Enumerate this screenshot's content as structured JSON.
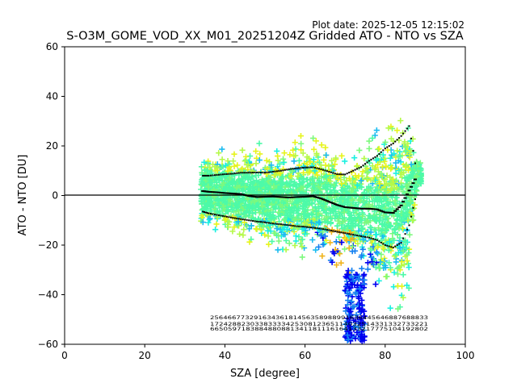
{
  "plot_date": "Plot date: 2025-12-05 12:15:02",
  "colors": {
    "zero_line": "#000000",
    "stat_marker": "#000000",
    "scatter_palette": [
      "#4dfaa8",
      "#7df97d",
      "#b5f94a",
      "#e6f41c",
      "#1cf0e0",
      "#1cbcf0",
      "#1480f0",
      "#f0b41c",
      "#0000f0"
    ]
  },
  "chart_data": {
    "type": "scatter",
    "title": "S-O3M_GOME_VOD_XX_M01_20251204Z Gridded ATO - NTO vs SZA",
    "xlabel": "SZA [degree]",
    "ylabel": "ATO - NTO [DU]",
    "xlim": [
      0,
      100
    ],
    "ylim": [
      -60,
      60
    ],
    "xticks": [
      "0",
      "20",
      "40",
      "60",
      "80",
      "100"
    ],
    "yticks": [
      "−60",
      "−40",
      "−20",
      "0",
      "20",
      "40",
      "60"
    ],
    "zero_line": 0,
    "scatter_x_range": [
      34,
      89
    ],
    "median": [
      [
        34.5,
        1.8
      ],
      [
        36,
        1.5
      ],
      [
        38,
        1.3
      ],
      [
        40,
        1
      ],
      [
        42,
        0.8
      ],
      [
        44,
        0.6
      ],
      [
        46,
        -0.2
      ],
      [
        48,
        -0.6
      ],
      [
        50,
        -0.5
      ],
      [
        52,
        -0.4
      ],
      [
        54,
        -0.6
      ],
      [
        56,
        -0.8
      ],
      [
        58,
        -0.6
      ],
      [
        60,
        -0.5
      ],
      [
        62,
        -0.3
      ],
      [
        64,
        -1.2
      ],
      [
        66,
        -2.5
      ],
      [
        68,
        -3.8
      ],
      [
        70,
        -4.7
      ],
      [
        72,
        -5
      ],
      [
        74,
        -5.3
      ],
      [
        76,
        -5.3
      ],
      [
        78,
        -5.6
      ],
      [
        80,
        -6.8
      ],
      [
        82,
        -7
      ],
      [
        84,
        -4
      ],
      [
        86,
        2
      ],
      [
        88,
        8
      ]
    ],
    "upper_sd": [
      [
        34.5,
        8
      ],
      [
        36,
        8
      ],
      [
        38,
        8.3
      ],
      [
        40,
        8.6
      ],
      [
        42,
        8.8
      ],
      [
        44,
        9.2
      ],
      [
        46,
        9.2
      ],
      [
        48,
        9.3
      ],
      [
        50,
        9.2
      ],
      [
        52,
        9.6
      ],
      [
        54,
        10
      ],
      [
        56,
        10.6
      ],
      [
        58,
        11
      ],
      [
        60,
        11.3
      ],
      [
        62,
        11.4
      ],
      [
        64,
        10.6
      ],
      [
        66,
        9.6
      ],
      [
        68,
        8.6
      ],
      [
        70,
        8.5
      ],
      [
        72,
        10
      ],
      [
        74,
        11.5
      ],
      [
        76,
        14
      ],
      [
        78,
        16
      ],
      [
        80,
        19
      ],
      [
        82,
        21
      ],
      [
        84,
        24
      ],
      [
        86,
        28
      ],
      [
        88,
        8
      ]
    ],
    "lower_sd": [
      [
        34.5,
        -6.5
      ],
      [
        36,
        -7.2
      ],
      [
        38,
        -7.8
      ],
      [
        40,
        -8.4
      ],
      [
        42,
        -9
      ],
      [
        44,
        -9.5
      ],
      [
        46,
        -10
      ],
      [
        48,
        -10.5
      ],
      [
        50,
        -10.8
      ],
      [
        52,
        -11.3
      ],
      [
        54,
        -11.6
      ],
      [
        56,
        -12
      ],
      [
        58,
        -12.4
      ],
      [
        60,
        -12.6
      ],
      [
        62,
        -13
      ],
      [
        64,
        -13.4
      ],
      [
        66,
        -14
      ],
      [
        68,
        -14.6
      ],
      [
        70,
        -15.2
      ],
      [
        72,
        -15.8
      ],
      [
        74,
        -16.4
      ],
      [
        76,
        -17
      ],
      [
        78,
        -18
      ],
      [
        80,
        -20
      ],
      [
        82,
        -21
      ],
      [
        84,
        -19
      ],
      [
        86,
        -12
      ],
      [
        88,
        2
      ]
    ],
    "count_labels": {
      "row1": "25646677329163436181456358988991636445646887688833",
      "row2": "1724288230338333342530812365114032514331332733221",
      "row3": "6650597183884880881341181116164133217775104192802"
    }
  }
}
